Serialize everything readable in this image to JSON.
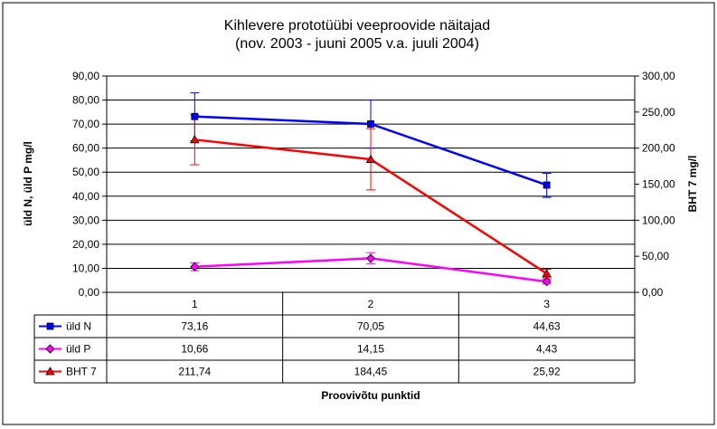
{
  "chart_data": {
    "type": "line",
    "title": "Kihlevere  prototüübi veeproovide näitajad",
    "subtitle": "(nov. 2003 - juuni 2005 v.a. juuli 2004)",
    "xlabel": "Proovivõtu punktid",
    "ylabel": "üld N, üld P  mg/l",
    "y2label": "BHT 7  mg/l",
    "categories": [
      "1",
      "2",
      "3"
    ],
    "ylim": [
      0,
      90
    ],
    "y2lim": [
      0,
      300
    ],
    "y_ticks": [
      "0,00",
      "10,00",
      "20,00",
      "30,00",
      "40,00",
      "50,00",
      "60,00",
      "70,00",
      "80,00",
      "90,00"
    ],
    "y2_ticks": [
      "0,00",
      "50,00",
      "100,00",
      "150,00",
      "200,00",
      "250,00",
      "300,00"
    ],
    "grid": true,
    "legend": "data-table",
    "series": [
      {
        "name": "üld N",
        "axis": "left",
        "color": "#0000ff",
        "marker": "square",
        "values": [
          73.16,
          70.05,
          44.63
        ],
        "labels": [
          "73,16",
          "70,05",
          "44,63"
        ],
        "error_low": [
          63.0,
          60.0,
          39.5
        ],
        "error_high": [
          83.0,
          80.0,
          49.5
        ]
      },
      {
        "name": "üld P",
        "axis": "left",
        "color": "#ff00ff",
        "marker": "diamond",
        "values": [
          10.66,
          14.15,
          4.43
        ],
        "labels": [
          "10,66",
          "14,15",
          "4,43"
        ],
        "error_low": [
          9.0,
          11.8,
          3.5
        ],
        "error_high": [
          12.3,
          16.5,
          5.4
        ]
      },
      {
        "name": "BHT 7",
        "axis": "right",
        "color": "#ff0000",
        "marker": "triangle",
        "values": [
          211.74,
          184.45,
          25.92
        ],
        "labels": [
          "211,74",
          "184,45",
          "25,92"
        ],
        "error_low": [
          177.0,
          142.0,
          20.0
        ],
        "error_high": [
          246.0,
          227.0,
          32.0
        ]
      }
    ]
  }
}
